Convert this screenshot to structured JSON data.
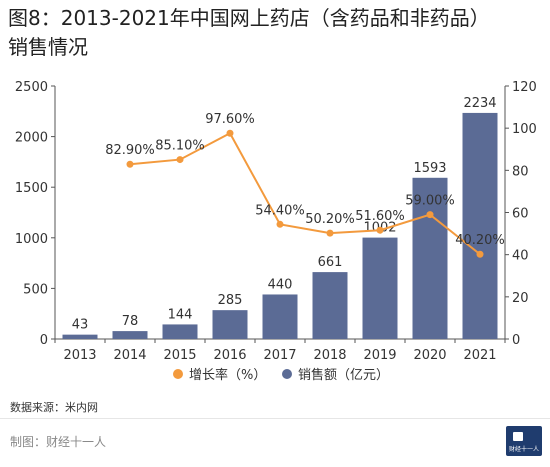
{
  "title_line1": "图8：2013-2021年中国网上药店（含药品和非药品）",
  "title_line2": "销售情况",
  "source": "数据来源：米内网",
  "footer": "制图：财经十一人",
  "logo_text": "财经十一人",
  "colors": {
    "bar": "#5b6b95",
    "line": "#f39a3d",
    "axis": "#555555"
  },
  "chart_data": {
    "type": "bar+line",
    "categories": [
      "2013",
      "2014",
      "2015",
      "2016",
      "2017",
      "2018",
      "2019",
      "2020",
      "2021"
    ],
    "series": [
      {
        "name": "销售额（亿元）",
        "type": "bar",
        "axis": "left",
        "values": [
          43,
          78,
          144,
          285,
          440,
          661,
          1002,
          1593,
          2234
        ],
        "labels": [
          "43",
          "78",
          "144",
          "285",
          "440",
          "661",
          "1002",
          "1593",
          "2234"
        ]
      },
      {
        "name": "增长率（%）",
        "type": "line",
        "axis": "right",
        "values": [
          null,
          82.9,
          85.1,
          97.6,
          54.4,
          50.2,
          51.6,
          59.0,
          40.2
        ],
        "labels": [
          "",
          "82.90%",
          "85.10%",
          "97.60%",
          "54.40%",
          "50.20%",
          "51.60%",
          "59.00%",
          "40.20%"
        ]
      }
    ],
    "y_left": {
      "min": 0,
      "max": 2500,
      "ticks": [
        "0",
        "500",
        "1000",
        "1500",
        "2000",
        "2500"
      ]
    },
    "y_right": {
      "min": 0,
      "max": 120,
      "ticks": [
        "0",
        "20",
        "40",
        "60",
        "80",
        "100",
        "120"
      ]
    },
    "legend_position": "bottom",
    "grid": false
  }
}
